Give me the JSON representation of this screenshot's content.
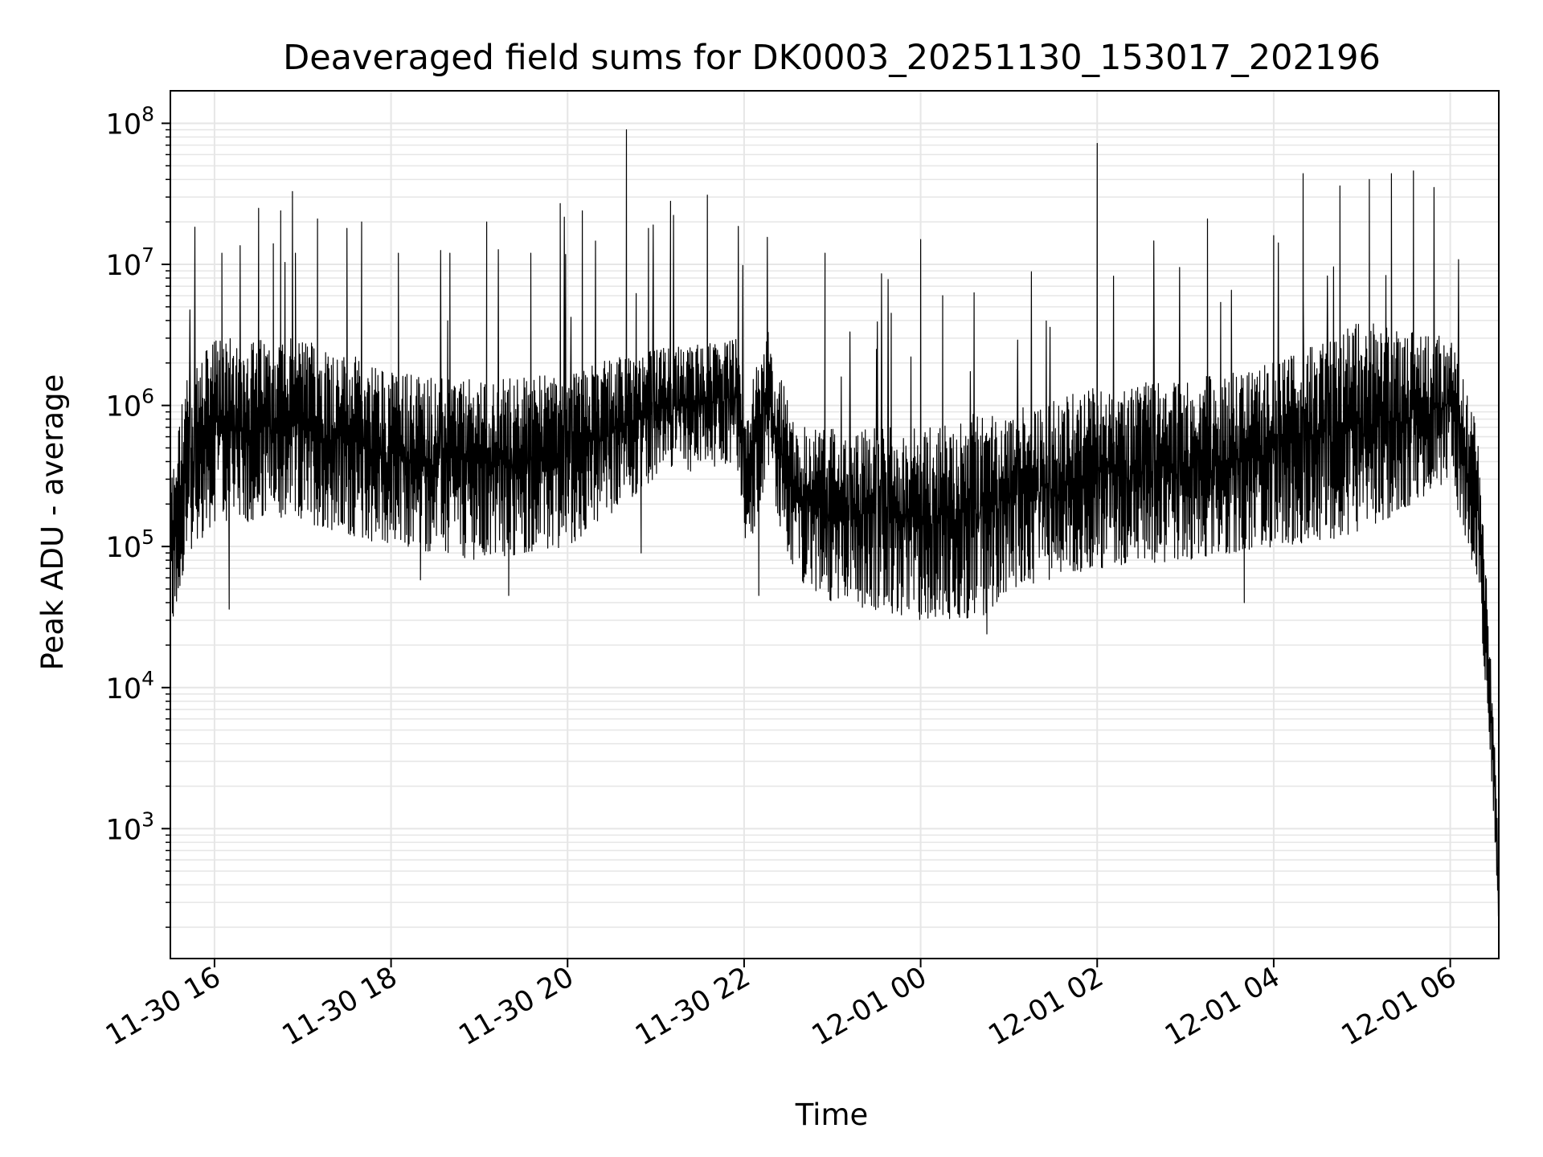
{
  "chart_data": {
    "type": "line",
    "title": "Deaveraged field sums for DK0003_20251130_153017_202196",
    "xlabel": "Time",
    "ylabel": "Peak ADU - average",
    "yscale": "log",
    "ylim": [
      120,
      170000000
    ],
    "xlim": [
      "2025-11-30 15:30",
      "2025-12-01 06:33"
    ],
    "grid": true,
    "line_color": "#000000",
    "grid_color": "#e6e6e6",
    "x_ticks": [
      {
        "t": "2025-11-30 16:00",
        "label": "11-30 16"
      },
      {
        "t": "2025-11-30 18:00",
        "label": "11-30 18"
      },
      {
        "t": "2025-11-30 20:00",
        "label": "11-30 20"
      },
      {
        "t": "2025-11-30 22:00",
        "label": "11-30 22"
      },
      {
        "t": "2025-12-01 00:00",
        "label": "12-01 00"
      },
      {
        "t": "2025-12-01 02:00",
        "label": "12-01 02"
      },
      {
        "t": "2025-12-01 04:00",
        "label": "12-01 04"
      },
      {
        "t": "2025-12-01 06:00",
        "label": "12-01 06"
      }
    ],
    "y_ticks": [
      {
        "value": 1000,
        "base": "10",
        "exp": "3"
      },
      {
        "value": 10000,
        "base": "10",
        "exp": "4"
      },
      {
        "value": 100000,
        "base": "10",
        "exp": "5"
      },
      {
        "value": 1000000,
        "base": "10",
        "exp": "6"
      },
      {
        "value": 10000000,
        "base": "10",
        "exp": "7"
      },
      {
        "value": 100000000,
        "base": "10",
        "exp": "8"
      }
    ],
    "series": [
      {
        "band_envelope": [
          {
            "t": "2025-11-30 15:30",
            "low": 20000,
            "high": 300000
          },
          {
            "t": "2025-11-30 15:40",
            "low": 80000,
            "high": 1500000
          },
          {
            "t": "2025-11-30 16:00",
            "low": 150000,
            "high": 3000000
          },
          {
            "t": "2025-11-30 17:00",
            "low": 150000,
            "high": 3000000
          },
          {
            "t": "2025-11-30 18:00",
            "low": 100000,
            "high": 1800000
          },
          {
            "t": "2025-11-30 19:00",
            "low": 80000,
            "high": 1500000
          },
          {
            "t": "2025-11-30 20:00",
            "low": 100000,
            "high": 1800000
          },
          {
            "t": "2025-11-30 21:00",
            "low": 300000,
            "high": 2500000
          },
          {
            "t": "2025-11-30 21:55",
            "low": 400000,
            "high": 3000000
          },
          {
            "t": "2025-11-30 22:00",
            "low": 70000,
            "high": 800000
          },
          {
            "t": "2025-11-30 22:15",
            "low": 300000,
            "high": 4000000
          },
          {
            "t": "2025-11-30 22:35",
            "low": 60000,
            "high": 700000
          },
          {
            "t": "2025-11-30 23:00",
            "low": 40000,
            "high": 700000
          },
          {
            "t": "2025-12-01 00:00",
            "low": 30000,
            "high": 700000
          },
          {
            "t": "2025-12-01 00:40",
            "low": 30000,
            "high": 900000
          },
          {
            "t": "2025-12-01 01:00",
            "low": 50000,
            "high": 900000
          },
          {
            "t": "2025-12-01 02:00",
            "low": 70000,
            "high": 1400000
          },
          {
            "t": "2025-12-01 03:00",
            "low": 80000,
            "high": 1500000
          },
          {
            "t": "2025-12-01 04:00",
            "low": 100000,
            "high": 2000000
          },
          {
            "t": "2025-12-01 05:00",
            "low": 120000,
            "high": 4000000
          },
          {
            "t": "2025-12-01 06:00",
            "low": 300000,
            "high": 3000000
          },
          {
            "t": "2025-12-01 06:18",
            "low": 50000,
            "high": 800000
          },
          {
            "t": "2025-12-01 06:24",
            "low": 10000,
            "high": 80000
          },
          {
            "t": "2025-12-01 06:30",
            "low": 1000,
            "high": 5000
          },
          {
            "t": "2025-12-01 06:33",
            "low": 200,
            "high": 500
          }
        ],
        "spikes": [
          {
            "t": "2025-11-30 16:05",
            "value": 12000000
          },
          {
            "t": "2025-11-30 16:30",
            "value": 25000000
          },
          {
            "t": "2025-11-30 16:40",
            "value": 14000000
          },
          {
            "t": "2025-11-30 16:45",
            "value": 24000000
          },
          {
            "t": "2025-11-30 16:55",
            "value": 12000000
          },
          {
            "t": "2025-11-30 17:10",
            "value": 21000000
          },
          {
            "t": "2025-11-30 17:30",
            "value": 18000000
          },
          {
            "t": "2025-11-30 17:40",
            "value": 20000000
          },
          {
            "t": "2025-11-30 18:05",
            "value": 12000000
          },
          {
            "t": "2025-11-30 18:40",
            "value": 12000000
          },
          {
            "t": "2025-11-30 19:05",
            "value": 20000000
          },
          {
            "t": "2025-11-30 19:35",
            "value": 12000000
          },
          {
            "t": "2025-11-30 19:55",
            "value": 27000000
          },
          {
            "t": "2025-11-30 20:10",
            "value": 24000000
          },
          {
            "t": "2025-11-30 20:40",
            "value": 90000000
          },
          {
            "t": "2025-11-30 20:55",
            "value": 18000000
          },
          {
            "t": "2025-11-30 21:10",
            "value": 28000000
          },
          {
            "t": "2025-11-30 21:35",
            "value": 31000000
          },
          {
            "t": "2025-11-30 22:55",
            "value": 12000000
          },
          {
            "t": "2025-11-30 23:40",
            "value": 4500000
          },
          {
            "t": "2025-12-01 00:00",
            "value": 15000000
          },
          {
            "t": "2025-12-01 00:15",
            "value": 6000000
          },
          {
            "t": "2025-12-01 02:00",
            "value": 72000000
          },
          {
            "t": "2025-12-01 03:15",
            "value": 21000000
          },
          {
            "t": "2025-12-01 04:00",
            "value": 16000000
          },
          {
            "t": "2025-12-01 04:20",
            "value": 44000000
          },
          {
            "t": "2025-12-01 04:45",
            "value": 36000000
          },
          {
            "t": "2025-12-01 05:05",
            "value": 40000000
          },
          {
            "t": "2025-12-01 05:20",
            "value": 44000000
          },
          {
            "t": "2025-12-01 05:35",
            "value": 46000000
          }
        ],
        "dips": [
          {
            "t": "2025-11-30 16:10",
            "value": 36000
          },
          {
            "t": "2025-11-30 18:20",
            "value": 58000
          },
          {
            "t": "2025-11-30 19:20",
            "value": 45000
          },
          {
            "t": "2025-11-30 20:50",
            "value": 90000
          },
          {
            "t": "2025-11-30 22:10",
            "value": 45000
          },
          {
            "t": "2025-12-01 00:45",
            "value": 24000
          },
          {
            "t": "2025-12-01 03:40",
            "value": 40000
          }
        ]
      }
    ]
  }
}
